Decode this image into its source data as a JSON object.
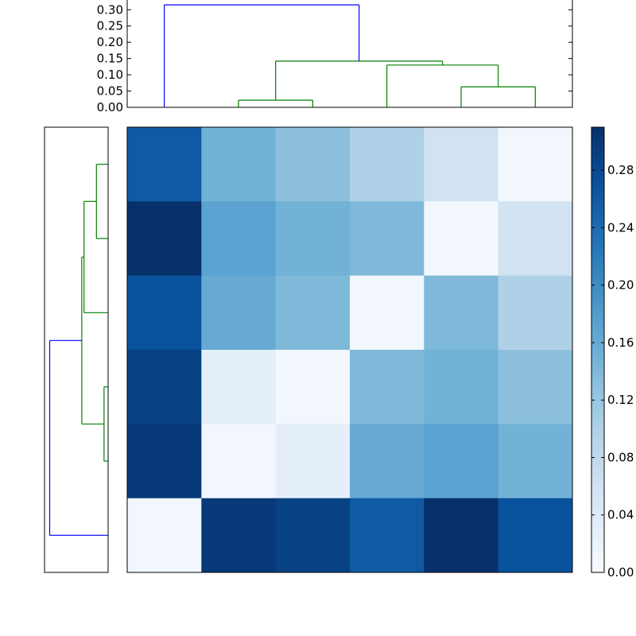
{
  "chart_data": [
    {
      "type": "dendrogram",
      "orientation": "top",
      "ylim": [
        0,
        0.33
      ],
      "yticks": [
        0.0,
        0.05,
        0.1,
        0.15,
        0.2,
        0.25,
        0.3
      ],
      "ytick_labels": [
        "0.00",
        "0.05",
        "0.10",
        "0.15",
        "0.20",
        "0.25",
        "0.30"
      ],
      "links": [
        {
          "left": 1.5,
          "right": 2.5,
          "height": 0.022,
          "color": "#008000"
        },
        {
          "left": 4.5,
          "right": 5.5,
          "height": 0.063,
          "color": "#008000"
        },
        {
          "left": 3.5,
          "right": 5.0,
          "height": 0.13,
          "color": "#008000"
        },
        {
          "left": 2.0,
          "right": 4.25,
          "height": 0.142,
          "color": "#008000"
        },
        {
          "left": 0.5,
          "right": 3.125,
          "height": 0.315,
          "color": "#0000ff"
        }
      ],
      "leaf_bottoms": [
        {
          "x": 0.5,
          "height": 0.315
        },
        {
          "x": 1.5,
          "height": 0.022
        },
        {
          "x": 2.5,
          "height": 0.022
        },
        {
          "x": 3.5,
          "height": 0.13
        },
        {
          "x": 4.5,
          "height": 0.063
        },
        {
          "x": 5.5,
          "height": 0.063
        }
      ]
    },
    {
      "type": "dendrogram",
      "orientation": "left",
      "xlim": [
        0,
        0.33
      ],
      "links": [
        {
          "top": 0.5,
          "bottom": 1.5,
          "height": 0.063,
          "color": "#008000"
        },
        {
          "top": 1.0,
          "bottom": 2.5,
          "height": 0.13,
          "color": "#008000"
        },
        {
          "top": 3.5,
          "bottom": 4.5,
          "height": 0.022,
          "color": "#008000"
        },
        {
          "top": 1.75,
          "bottom": 4.0,
          "height": 0.142,
          "color": "#008000"
        },
        {
          "top": 2.875,
          "bottom": 5.5,
          "height": 0.315,
          "color": "#0000ff"
        }
      ]
    },
    {
      "type": "heatmap",
      "colormap": "Blues",
      "vmin": 0.0,
      "vmax": 0.31,
      "values": [
        [
          0.26,
          0.15,
          0.13,
          0.1,
          0.06,
          0.01
        ],
        [
          0.31,
          0.17,
          0.15,
          0.14,
          0.01,
          0.06
        ],
        [
          0.27,
          0.16,
          0.14,
          0.01,
          0.14,
          0.1
        ],
        [
          0.29,
          0.03,
          0.01,
          0.14,
          0.15,
          0.13
        ],
        [
          0.3,
          0.01,
          0.03,
          0.16,
          0.17,
          0.15
        ],
        [
          0.01,
          0.3,
          0.29,
          0.26,
          0.31,
          0.27
        ]
      ]
    },
    {
      "type": "colorbar",
      "vmin": 0.0,
      "vmax": 0.31,
      "ticks": [
        0.0,
        0.04,
        0.08,
        0.12,
        0.16,
        0.2,
        0.24,
        0.28
      ],
      "tick_labels": [
        "0.00",
        "0.04",
        "0.08",
        "0.12",
        "0.16",
        "0.20",
        "0.24",
        "0.28"
      ]
    }
  ]
}
